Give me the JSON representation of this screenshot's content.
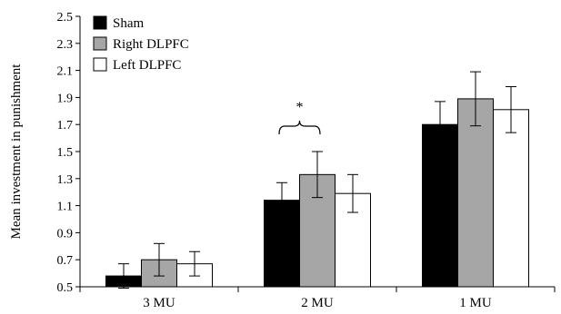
{
  "chart_data": {
    "type": "bar",
    "title": "",
    "xlabel": "",
    "ylabel": "Mean investment in punishment",
    "ylim": [
      0.5,
      2.5
    ],
    "yticks": [
      "0.5",
      "0.7",
      "0.9",
      "1.1",
      "1.3",
      "1.5",
      "1.7",
      "1.9",
      "2.1",
      "2.3",
      "2.5"
    ],
    "categories": [
      "3 MU",
      "2 MU",
      "1 MU"
    ],
    "series": [
      {
        "name": "Sham",
        "color": "#000000",
        "values": [
          0.58,
          1.14,
          1.7
        ],
        "errors": [
          0.09,
          0.13,
          0.17
        ]
      },
      {
        "name": "Right DLPFC",
        "color": "#a6a6a6",
        "values": [
          0.7,
          1.33,
          1.89
        ],
        "errors": [
          0.12,
          0.17,
          0.2
        ]
      },
      {
        "name": "Left DLPFC",
        "color": "#ffffff",
        "values": [
          0.67,
          1.19,
          1.81
        ],
        "errors": [
          0.09,
          0.14,
          0.17
        ]
      }
    ],
    "grid": false,
    "legend_position": "top-left",
    "annotation": {
      "text": "*",
      "category_index": 1,
      "from_series": 0,
      "to_series": 1
    }
  }
}
